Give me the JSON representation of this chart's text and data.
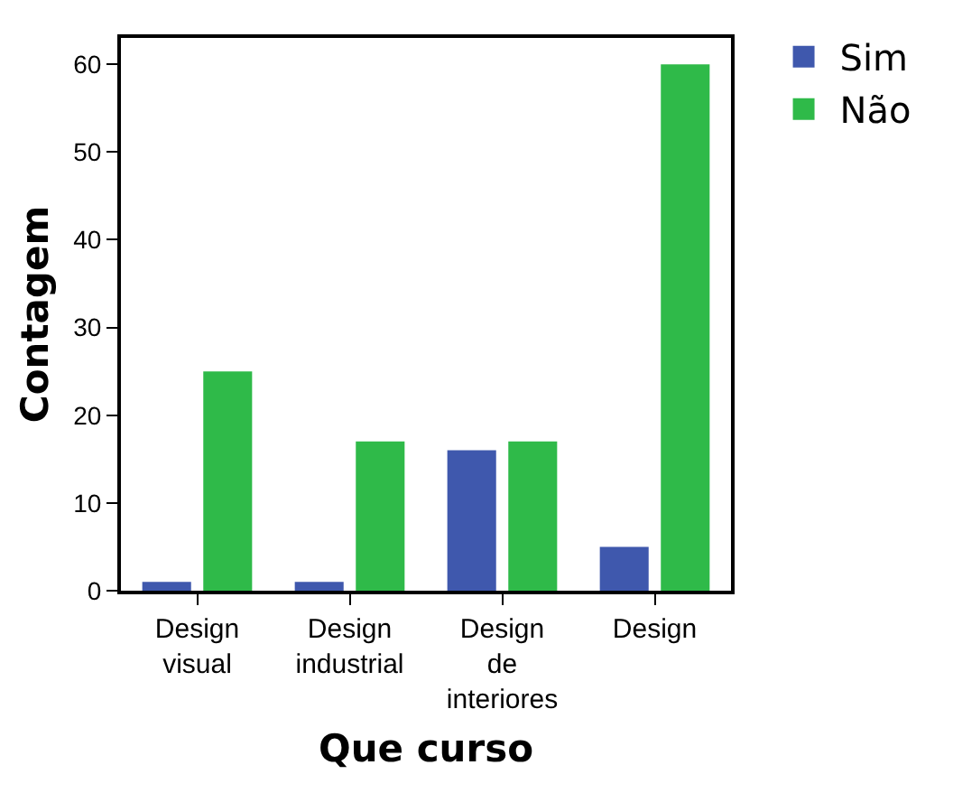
{
  "chart_data": {
    "type": "bar",
    "xlabel": "Que curso",
    "ylabel": "Contagem",
    "categories": [
      "Design visual",
      "Design industrial",
      "Design de interiores",
      "Design"
    ],
    "series": [
      {
        "name": "Sim",
        "color": "#3f58ad",
        "values": [
          1,
          1,
          16,
          5
        ]
      },
      {
        "name": "Não",
        "color": "#2fba49",
        "values": [
          25,
          17,
          17,
          60
        ]
      }
    ],
    "ylim": [
      0,
      63
    ],
    "yticks": [
      0,
      10,
      20,
      30,
      40,
      50,
      60
    ],
    "grid": false,
    "legend": "top right"
  }
}
